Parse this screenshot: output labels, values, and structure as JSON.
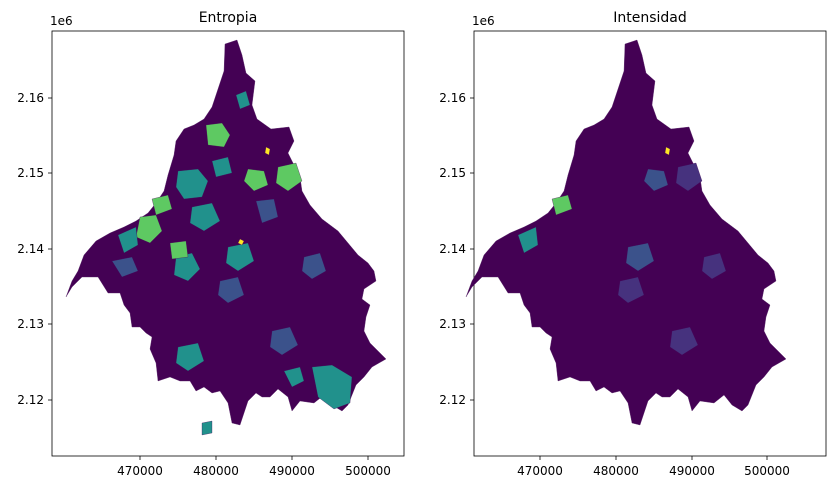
{
  "figure": {
    "panels": [
      {
        "title": "Entropia",
        "offset_label": "1e6",
        "x_ticks": [
          "470000",
          "480000",
          "490000",
          "500000"
        ],
        "y_ticks": [
          "2.12",
          "2.13",
          "2.14",
          "2.15",
          "2.16"
        ]
      },
      {
        "title": "Intensidad",
        "offset_label": "1e6",
        "x_ticks": [
          "470000",
          "480000",
          "490000",
          "500000"
        ],
        "y_ticks": [
          "2.12",
          "2.13",
          "2.14",
          "2.15",
          "2.16"
        ]
      }
    ]
  },
  "chart_data": {
    "type": "map",
    "description_of_axes": "projected coordinates (UTM) x and y, y shown with 1e6 offset",
    "x_range": [
      461500,
      507500
    ],
    "y_range": [
      2112500,
      2169000
    ],
    "x_tick_values": [
      470000,
      480000,
      490000,
      500000
    ],
    "y_tick_values": [
      2120000,
      2130000,
      2140000,
      2150000,
      2160000
    ],
    "colormap": [
      "#440154",
      "#3b528b",
      "#21918c",
      "#5ec962",
      "#fde725"
    ],
    "colors": {
      "base": "#440154",
      "low": "#46327e",
      "mid_low": "#3b528b",
      "mid": "#21918c",
      "high": "#5ec962",
      "max": "#fde725"
    }
  }
}
